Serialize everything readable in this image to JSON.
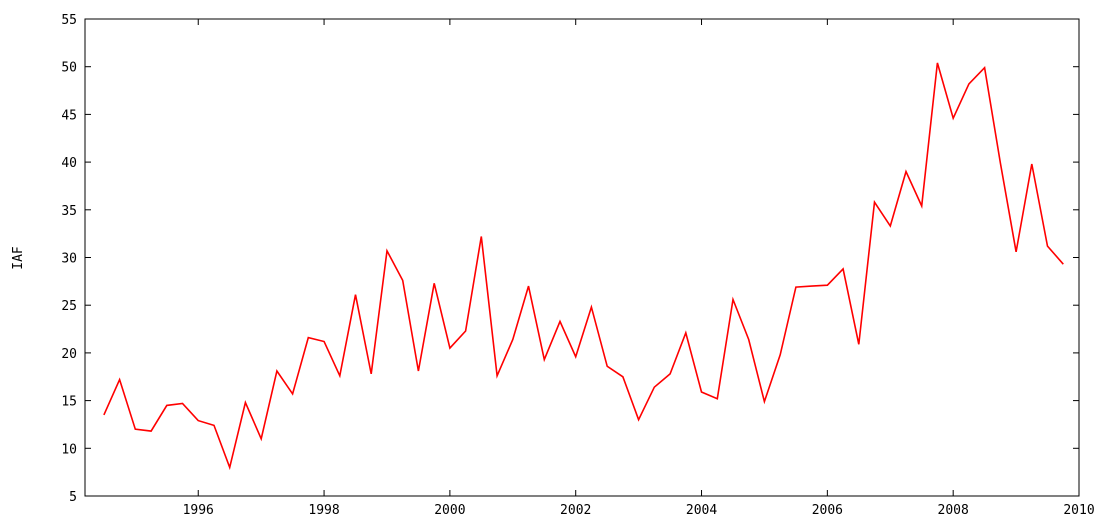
{
  "chart_data": {
    "type": "line",
    "title": "",
    "xlabel": "",
    "ylabel": "IAF",
    "xlim": [
      1994.2,
      2010.0
    ],
    "ylim": [
      5,
      55
    ],
    "x_ticks": [
      1996,
      1998,
      2000,
      2002,
      2004,
      2006,
      2008,
      2010
    ],
    "y_ticks": [
      5,
      10,
      15,
      20,
      25,
      30,
      35,
      40,
      45,
      50,
      55
    ],
    "grid": false,
    "legend": "none",
    "series": [
      {
        "color": "#ff0000",
        "x": [
          1994.5,
          1994.75,
          1995.0,
          1995.25,
          1995.5,
          1995.75,
          1996.0,
          1996.25,
          1996.5,
          1996.75,
          1997.0,
          1997.25,
          1997.5,
          1997.75,
          1998.0,
          1998.25,
          1998.5,
          1998.75,
          1999.0,
          1999.25,
          1999.5,
          1999.75,
          2000.0,
          2000.25,
          2000.5,
          2000.75,
          2001.0,
          2001.25,
          2001.5,
          2001.75,
          2002.0,
          2002.25,
          2002.5,
          2002.75,
          2003.0,
          2003.25,
          2003.5,
          2003.75,
          2004.0,
          2004.25,
          2004.5,
          2004.75,
          2005.0,
          2005.25,
          2005.5,
          2005.75,
          2006.0,
          2006.25,
          2006.5,
          2006.75,
          2007.0,
          2007.25,
          2007.5,
          2007.75,
          2008.0,
          2008.25,
          2008.5,
          2008.75,
          2009.0,
          2009.25,
          2009.5,
          2009.75
        ],
        "values": [
          13.5,
          17.2,
          12.0,
          11.8,
          14.5,
          14.7,
          12.9,
          12.4,
          8.0,
          14.8,
          11.0,
          18.1,
          15.7,
          21.6,
          21.2,
          17.6,
          26.1,
          17.8,
          30.7,
          27.6,
          18.1,
          27.3,
          20.5,
          22.3,
          32.2,
          17.6,
          21.4,
          27.0,
          19.3,
          23.3,
          19.6,
          24.8,
          18.6,
          17.5,
          13.0,
          16.4,
          17.8,
          22.1,
          15.9,
          15.2,
          25.6,
          21.4,
          14.9,
          19.8,
          26.9,
          27.0,
          27.1,
          28.8,
          20.9,
          35.8,
          33.3,
          39.0,
          35.4,
          50.4,
          44.6,
          48.2,
          49.9,
          39.9,
          30.6,
          39.8,
          31.2,
          29.3
        ]
      }
    ]
  }
}
